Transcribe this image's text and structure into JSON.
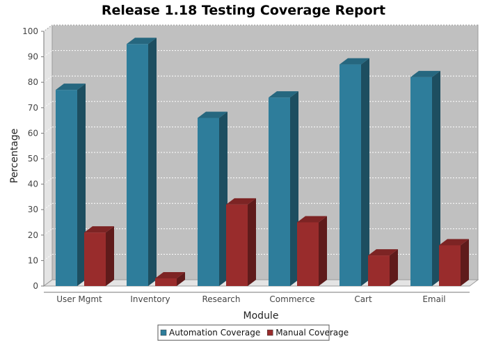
{
  "chart_data": {
    "type": "bar",
    "title": "Release 1.18 Testing Coverage Report",
    "xlabel": "Module",
    "ylabel": "Percentage",
    "categories": [
      "User Mgmt",
      "Inventory",
      "Research",
      "Commerce",
      "Cart",
      "Email"
    ],
    "series": [
      {
        "name": "Automation Coverage",
        "color": "#2e7d9b",
        "values": [
          77,
          95,
          66,
          74,
          87,
          82
        ]
      },
      {
        "name": "Manual Coverage",
        "color": "#992c2c",
        "values": [
          21,
          3,
          32,
          25,
          12,
          16
        ]
      }
    ],
    "ylim": [
      0,
      100
    ],
    "yticks": [
      0,
      10,
      20,
      30,
      40,
      50,
      60,
      70,
      80,
      90,
      100
    ],
    "grid": true,
    "legend_position": "bottom-center",
    "plot_background": "#c0c0c0"
  }
}
